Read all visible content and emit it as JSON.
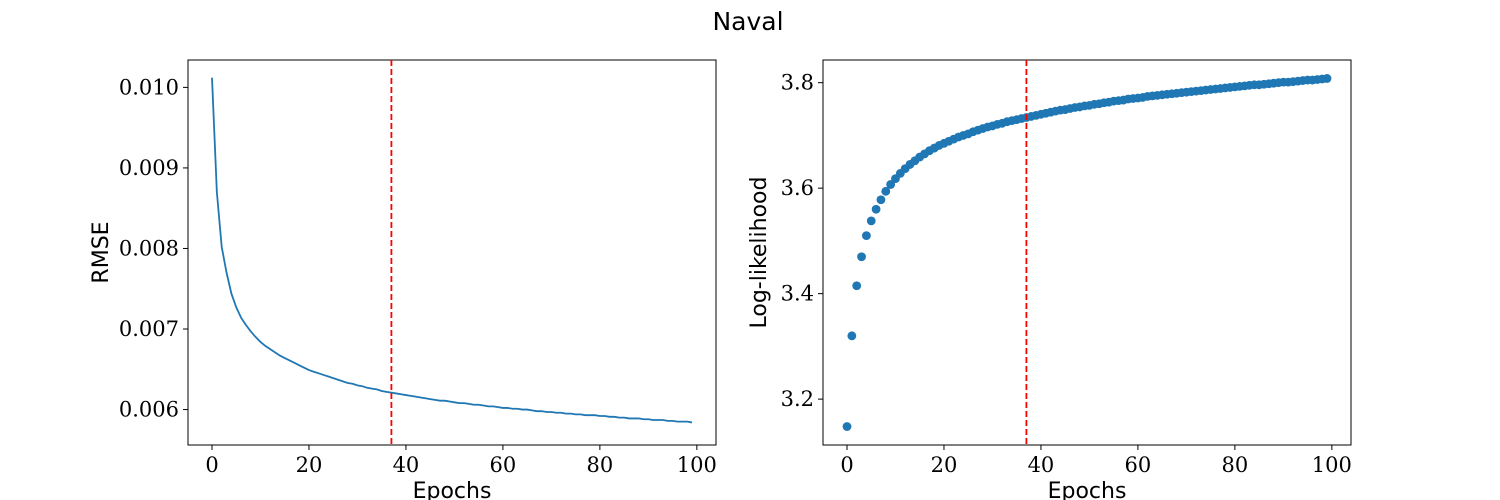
{
  "figure": {
    "title": "Naval"
  },
  "chart_data": [
    {
      "type": "line",
      "xlabel": "Epochs",
      "ylabel": "RMSE",
      "xlim": [
        -4.95,
        103.95
      ],
      "ylim": [
        0.00556,
        0.01034
      ],
      "xticks": [
        0,
        20,
        40,
        60,
        80,
        100
      ],
      "xtick_labels": [
        "0",
        "20",
        "40",
        "60",
        "80",
        "100"
      ],
      "yticks": [
        0.006,
        0.007,
        0.008,
        0.009,
        0.01
      ],
      "ytick_labels": [
        "0.006",
        "0.007",
        "0.008",
        "0.009",
        "0.010"
      ],
      "grid": false,
      "series": [
        {
          "color": "#1f77b4",
          "x": [
            0,
            1,
            2,
            3,
            4,
            5,
            6,
            7,
            8,
            9,
            10,
            11,
            12,
            13,
            14,
            15,
            16,
            17,
            18,
            19,
            20,
            21,
            22,
            23,
            24,
            25,
            26,
            27,
            28,
            29,
            30,
            31,
            32,
            33,
            34,
            35,
            36,
            37,
            38,
            39,
            40,
            41,
            42,
            43,
            44,
            45,
            46,
            47,
            48,
            49,
            50,
            51,
            52,
            53,
            54,
            55,
            56,
            57,
            58,
            59,
            60,
            61,
            62,
            63,
            64,
            65,
            66,
            67,
            68,
            69,
            70,
            71,
            72,
            73,
            74,
            75,
            76,
            77,
            78,
            79,
            80,
            81,
            82,
            83,
            84,
            85,
            86,
            87,
            88,
            89,
            90,
            91,
            92,
            93,
            94,
            95,
            96,
            97,
            98,
            99
          ],
          "values": [
            0.01012,
            0.0087,
            0.00802,
            0.0077,
            0.00744,
            0.00727,
            0.00714,
            0.00705,
            0.00697,
            0.0069,
            0.00684,
            0.00679,
            0.00675,
            0.00671,
            0.00667,
            0.00664,
            0.00661,
            0.00658,
            0.00655,
            0.00652,
            0.00649,
            0.00647,
            0.00645,
            0.00643,
            0.00641,
            0.00639,
            0.00637,
            0.00635,
            0.00633,
            0.00632,
            0.0063,
            0.00629,
            0.00627,
            0.00626,
            0.00625,
            0.00623,
            0.00622,
            0.00621,
            0.0062,
            0.00619,
            0.00618,
            0.00617,
            0.00616,
            0.00615,
            0.00614,
            0.00613,
            0.00612,
            0.00611,
            0.00611,
            0.0061,
            0.00609,
            0.00608,
            0.00608,
            0.00607,
            0.00606,
            0.00606,
            0.00605,
            0.00604,
            0.00604,
            0.00603,
            0.00602,
            0.00602,
            0.00601,
            0.00601,
            0.006,
            0.006,
            0.00599,
            0.00598,
            0.00598,
            0.00597,
            0.00597,
            0.00596,
            0.00596,
            0.00595,
            0.00595,
            0.00594,
            0.00594,
            0.00593,
            0.00593,
            0.00593,
            0.00592,
            0.00592,
            0.00591,
            0.00591,
            0.0059,
            0.0059,
            0.00589,
            0.00589,
            0.00589,
            0.00588,
            0.00588,
            0.00587,
            0.00587,
            0.00587,
            0.00586,
            0.00586,
            0.00585,
            0.00585,
            0.00585,
            0.00584
          ]
        }
      ],
      "vline": {
        "x": 37,
        "color": "#ff0000",
        "style": "dashed"
      }
    },
    {
      "type": "scatter",
      "xlabel": "Epochs",
      "ylabel": "Log-likelihood",
      "xlim": [
        -4.95,
        103.95
      ],
      "ylim": [
        3.113,
        3.843
      ],
      "xticks": [
        0,
        20,
        40,
        60,
        80,
        100
      ],
      "xtick_labels": [
        "0",
        "20",
        "40",
        "60",
        "80",
        "100"
      ],
      "yticks": [
        3.2,
        3.4,
        3.6,
        3.8
      ],
      "ytick_labels": [
        "3.2",
        "3.4",
        "3.6",
        "3.8"
      ],
      "grid": false,
      "series": [
        {
          "color": "#1f77b4",
          "x": [
            0,
            1,
            2,
            3,
            4,
            5,
            6,
            7,
            8,
            9,
            10,
            11,
            12,
            13,
            14,
            15,
            16,
            17,
            18,
            19,
            20,
            21,
            22,
            23,
            24,
            25,
            26,
            27,
            28,
            29,
            30,
            31,
            32,
            33,
            34,
            35,
            36,
            37,
            38,
            39,
            40,
            41,
            42,
            43,
            44,
            45,
            46,
            47,
            48,
            49,
            50,
            51,
            52,
            53,
            54,
            55,
            56,
            57,
            58,
            59,
            60,
            61,
            62,
            63,
            64,
            65,
            66,
            67,
            68,
            69,
            70,
            71,
            72,
            73,
            74,
            75,
            76,
            77,
            78,
            79,
            80,
            81,
            82,
            83,
            84,
            85,
            86,
            87,
            88,
            89,
            90,
            91,
            92,
            93,
            94,
            95,
            96,
            97,
            98,
            99
          ],
          "values": [
            3.148,
            3.32,
            3.415,
            3.47,
            3.51,
            3.538,
            3.56,
            3.578,
            3.594,
            3.607,
            3.618,
            3.628,
            3.637,
            3.645,
            3.652,
            3.659,
            3.665,
            3.671,
            3.676,
            3.681,
            3.685,
            3.689,
            3.693,
            3.697,
            3.7,
            3.703,
            3.707,
            3.71,
            3.713,
            3.716,
            3.718,
            3.721,
            3.723,
            3.726,
            3.728,
            3.73,
            3.732,
            3.734,
            3.736,
            3.738,
            3.74,
            3.742,
            3.744,
            3.746,
            3.748,
            3.749,
            3.751,
            3.753,
            3.754,
            3.756,
            3.757,
            3.759,
            3.76,
            3.762,
            3.763,
            3.765,
            3.766,
            3.767,
            3.769,
            3.77,
            3.771,
            3.772,
            3.774,
            3.775,
            3.776,
            3.777,
            3.778,
            3.779,
            3.78,
            3.781,
            3.782,
            3.783,
            3.784,
            3.785,
            3.786,
            3.787,
            3.788,
            3.789,
            3.79,
            3.791,
            3.792,
            3.793,
            3.794,
            3.795,
            3.796,
            3.796,
            3.797,
            3.798,
            3.799,
            3.8,
            3.801,
            3.801,
            3.802,
            3.803,
            3.804,
            3.805,
            3.805,
            3.806,
            3.807,
            3.808
          ]
        }
      ],
      "vline": {
        "x": 37,
        "color": "#ff0000",
        "style": "dashed"
      }
    }
  ]
}
